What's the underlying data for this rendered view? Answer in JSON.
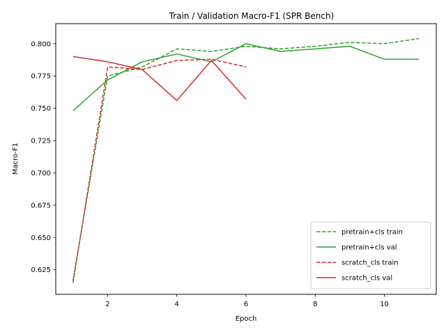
{
  "chart_data": {
    "type": "line",
    "title": "Train / Validation Macro-F1 (SPR Bench)",
    "xlabel": "Epoch",
    "ylabel": "Macro-F1",
    "xlim": [
      0.5,
      11.5
    ],
    "ylim": [
      0.606,
      0.8155
    ],
    "xticks": [
      2,
      4,
      6,
      8,
      10
    ],
    "yticks": [
      0.625,
      0.65,
      0.675,
      0.7,
      0.725,
      0.75,
      0.775,
      0.8
    ],
    "grid": false,
    "legend_position": "lower-right",
    "series": [
      {
        "name": "pretrain+cls train",
        "color": "#2ca02c",
        "dash": true,
        "x": [
          1,
          2,
          3,
          4,
          5,
          6,
          7,
          8,
          9,
          10,
          11
        ],
        "y": [
          0.617,
          0.775,
          0.782,
          0.796,
          0.794,
          0.798,
          0.796,
          0.798,
          0.801,
          0.8,
          0.804
        ]
      },
      {
        "name": "pretrain+cls val",
        "color": "#2ca02c",
        "dash": false,
        "x": [
          1,
          2,
          3,
          4,
          5,
          6,
          7,
          8,
          9,
          10,
          11
        ],
        "y": [
          0.748,
          0.772,
          0.786,
          0.792,
          0.786,
          0.8,
          0.794,
          0.796,
          0.798,
          0.788,
          0.788
        ]
      },
      {
        "name": "scratch_cls train",
        "color": "#d62728",
        "dash": true,
        "x": [
          1,
          2,
          3,
          4,
          5,
          6
        ],
        "y": [
          0.615,
          0.782,
          0.78,
          0.787,
          0.788,
          0.782
        ]
      },
      {
        "name": "scratch_cls val",
        "color": "#d62728",
        "dash": false,
        "x": [
          1,
          2,
          3,
          4,
          5,
          6
        ],
        "y": [
          0.79,
          0.786,
          0.78,
          0.756,
          0.787,
          0.757
        ]
      }
    ]
  }
}
